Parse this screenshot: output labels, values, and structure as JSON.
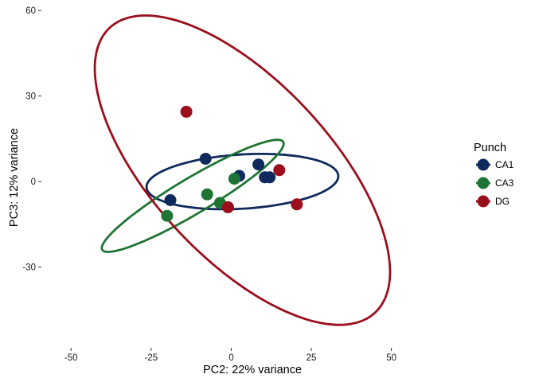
{
  "chart_data": {
    "type": "scatter",
    "xlabel": "PC2: 22% variance",
    "ylabel": "PC3: 12% variance",
    "xlim": [
      -59,
      67
    ],
    "ylim": [
      -58,
      62
    ],
    "xticks": [
      -50,
      -25,
      0,
      25,
      50
    ],
    "xtick_labels": [
      "-50",
      "-25",
      "0",
      "25",
      "50"
    ],
    "yticks": [
      -30,
      0,
      30,
      60
    ],
    "ytick_labels": [
      "-30",
      "0",
      "30",
      "60"
    ],
    "grid": false,
    "legend": {
      "title": "Punch",
      "placement": "right"
    },
    "series": [
      {
        "name": "CA1",
        "color": "#0f2a5c",
        "points": [
          [
            -19,
            -6.5
          ],
          [
            -8,
            8
          ],
          [
            2.5,
            2
          ],
          [
            8.5,
            6
          ],
          [
            10.5,
            1.5
          ],
          [
            12,
            1.5
          ]
        ],
        "ellipse": {
          "cx": 3.5,
          "cy": 0,
          "rx": 30,
          "ry": 9.5,
          "angle_deg": 4
        }
      },
      {
        "name": "CA3",
        "color": "#1f7435",
        "points": [
          [
            -20,
            -12
          ],
          [
            -7.5,
            -4.5
          ],
          [
            -3.5,
            -7.5
          ],
          [
            1,
            1
          ]
        ],
        "ellipse": {
          "cx": -12,
          "cy": -5,
          "rx": 34,
          "ry": 6,
          "angle_deg": 34
        }
      },
      {
        "name": "DG",
        "color": "#9b0f1c",
        "points": [
          [
            -14,
            24.5
          ],
          [
            -1,
            -9
          ],
          [
            15,
            4
          ],
          [
            20.5,
            -8
          ]
        ],
        "ellipse": {
          "cx": 3.5,
          "cy": 4,
          "rx": 65,
          "ry": 29,
          "angle_deg": -52
        }
      }
    ]
  }
}
